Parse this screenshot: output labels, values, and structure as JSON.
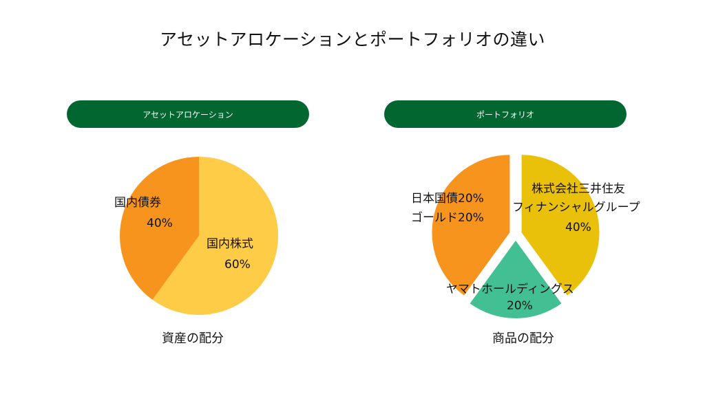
{
  "title": "アセットアロケーションとポートフォリオの違い",
  "left": {
    "header": "アセットアロケーション",
    "caption": "資産の配分",
    "slices": [
      {
        "label": "国内株式",
        "percent_text": "60%",
        "value": 60,
        "color": "#FECC47"
      },
      {
        "label": "国内債券",
        "percent_text": "40%",
        "value": 40,
        "color": "#F7941D"
      }
    ]
  },
  "right": {
    "header": "ポートフォリオ",
    "caption": "商品の配分",
    "slices": [
      {
        "label": "株式会社三井住友",
        "label2": "フィナンシャルグループ",
        "percent_text": "40%",
        "value": 40,
        "color": "#EAC10A"
      },
      {
        "label": "ヤマトホールディングス",
        "percent_text": "20%",
        "value": 20,
        "color": "#43C093"
      },
      {
        "label": "日本国債20%",
        "label2": "ゴールド20%",
        "value": 40,
        "color": "#F7941D"
      }
    ]
  }
}
